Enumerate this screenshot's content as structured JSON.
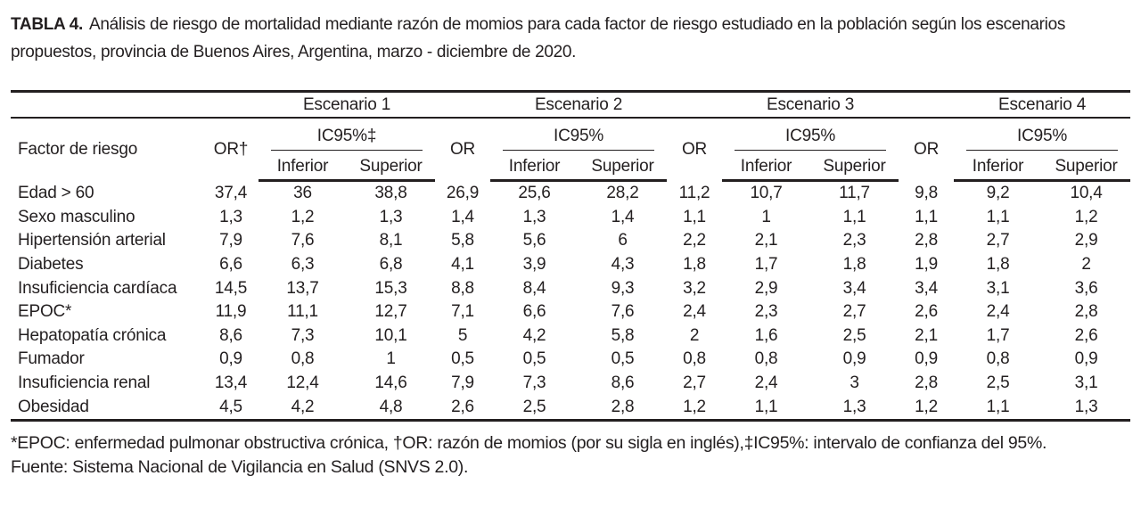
{
  "colors": {
    "text": "#231f20",
    "rules": "#231f20",
    "background": "#ffffff"
  },
  "caption": {
    "label": "TABLA 4.",
    "text": "Análisis de riesgo de mortalidad mediante razón de momios para cada factor de riesgo estudiado en la población según los escenarios propuestos, provincia de Buenos Aires, Argentina, marzo - diciembre de 2020."
  },
  "table": {
    "factor_header": "Factor de riesgo",
    "scenarios": [
      {
        "name": "Escenario 1",
        "or_label": "OR†",
        "ic_label": "IC95%‡",
        "inferior_label": "Inferior",
        "superior_label": "Superior"
      },
      {
        "name": "Escenario 2",
        "or_label": "OR",
        "ic_label": "IC95%",
        "inferior_label": "Inferior",
        "superior_label": "Superior"
      },
      {
        "name": "Escenario 3",
        "or_label": "OR",
        "ic_label": "IC95%",
        "inferior_label": "Inferior",
        "superior_label": "Superior"
      },
      {
        "name": "Escenario 4",
        "or_label": "OR",
        "ic_label": "IC95%",
        "inferior_label": "Inferior",
        "superior_label": "Superior"
      }
    ],
    "rows": [
      {
        "factor": "Edad > 60",
        "values": [
          "37,4",
          "36",
          "38,8",
          "26,9",
          "25,6",
          "28,2",
          "11,2",
          "10,7",
          "11,7",
          "9,8",
          "9,2",
          "10,4"
        ]
      },
      {
        "factor": "Sexo masculino",
        "values": [
          "1,3",
          "1,2",
          "1,3",
          "1,4",
          "1,3",
          "1,4",
          "1,1",
          "1",
          "1,1",
          "1,1",
          "1,1",
          "1,2"
        ]
      },
      {
        "factor": "Hipertensión arterial",
        "values": [
          "7,9",
          "7,6",
          "8,1",
          "5,8",
          "5,6",
          "6",
          "2,2",
          "2,1",
          "2,3",
          "2,8",
          "2,7",
          "2,9"
        ]
      },
      {
        "factor": "Diabetes",
        "values": [
          "6,6",
          "6,3",
          "6,8",
          "4,1",
          "3,9",
          "4,3",
          "1,8",
          "1,7",
          "1,8",
          "1,9",
          "1,8",
          "2"
        ]
      },
      {
        "factor": "Insuficiencia cardíaca",
        "values": [
          "14,5",
          "13,7",
          "15,3",
          "8,8",
          "8,4",
          "9,3",
          "3,2",
          "2,9",
          "3,4",
          "3,4",
          "3,1",
          "3,6"
        ]
      },
      {
        "factor": "EPOC*",
        "values": [
          "11,9",
          "11,1",
          "12,7",
          "7,1",
          "6,6",
          "7,6",
          "2,4",
          "2,3",
          "2,7",
          "2,6",
          "2,4",
          "2,8"
        ]
      },
      {
        "factor": "Hepatopatía crónica",
        "values": [
          "8,6",
          "7,3",
          "10,1",
          "5",
          "4,2",
          "5,8",
          "2",
          "1,6",
          "2,5",
          "2,1",
          "1,7",
          "2,6"
        ]
      },
      {
        "factor": "Fumador",
        "values": [
          "0,9",
          "0,8",
          "1",
          "0,5",
          "0,5",
          "0,5",
          "0,8",
          "0,8",
          "0,9",
          "0,9",
          "0,8",
          "0,9"
        ]
      },
      {
        "factor": "Insuficiencia renal",
        "values": [
          "13,4",
          "12,4",
          "14,6",
          "7,9",
          "7,3",
          "8,6",
          "2,7",
          "2,4",
          "3",
          "2,8",
          "2,5",
          "3,1"
        ]
      },
      {
        "factor": "Obesidad",
        "values": [
          "4,5",
          "4,2",
          "4,8",
          "2,6",
          "2,5",
          "2,8",
          "1,2",
          "1,1",
          "1,3",
          "1,2",
          "1,1",
          "1,3"
        ]
      }
    ]
  },
  "footnotes": {
    "abbreviations": "*EPOC: enfermedad pulmonar obstructiva crónica, †OR: razón de momios (por su sigla en inglés),‡IC95%: intervalo de confianza del 95%.",
    "source": "Fuente: Sistema Nacional de Vigilancia en Salud (SNVS 2.0)."
  }
}
